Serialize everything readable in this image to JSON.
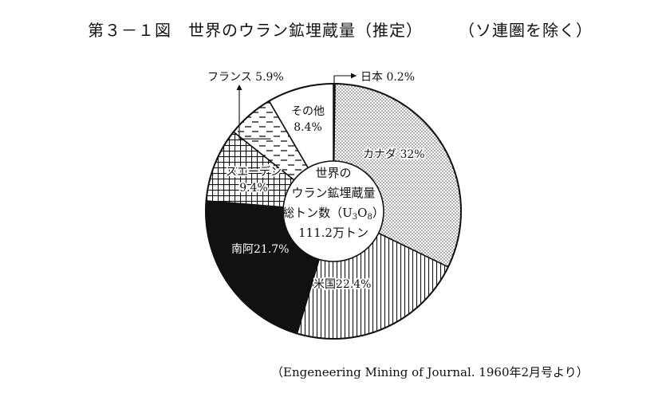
{
  "figure": {
    "title": "第３－１図　世界のウラン鉱埋蔵量（推定）",
    "title_note": "（ソ連圏を除く）",
    "source": "（Engeneering Mining of Journal. 1960年2月号より）"
  },
  "chart_data": {
    "type": "pie",
    "style": "donut",
    "title": "第３－１図　世界のウラン鉱埋蔵量（推定）",
    "subtitle": "（ソ連圏を除く）",
    "unit": "%",
    "center_label": [
      "世界の",
      "ウラン鉱埋蔵量",
      "総トン数（U3O8）",
      "111.2万トン"
    ],
    "total": "111.2万トン",
    "slices": [
      {
        "name": "日本",
        "value": 0.2,
        "label": "日本 0.2%",
        "pattern": "dark"
      },
      {
        "name": "カナダ",
        "value": 32,
        "label": "カナダ 32%",
        "pattern": "dots"
      },
      {
        "name": "米国",
        "value": 22.4,
        "label": "米国22.4%",
        "pattern": "vlines"
      },
      {
        "name": "南阿",
        "value": 21.7,
        "label": "南阿21.7%",
        "pattern": "black"
      },
      {
        "name": "スエーデン",
        "value": 9.4,
        "label_lines": [
          "スエーデン",
          "9.4%"
        ],
        "pattern": "grid"
      },
      {
        "name": "フランス",
        "value": 5.9,
        "label": "フランス 5.9%",
        "pattern": "dashes"
      },
      {
        "name": "その他",
        "value": 8.4,
        "label_lines": [
          "その他",
          "8.4%"
        ],
        "pattern": "white"
      }
    ],
    "start_angle": "top, clockwise",
    "legend": "none (direct labels)",
    "colors": {
      "ink": "#111111",
      "paper": "#ffffff",
      "dark_slice": "#444444"
    }
  }
}
